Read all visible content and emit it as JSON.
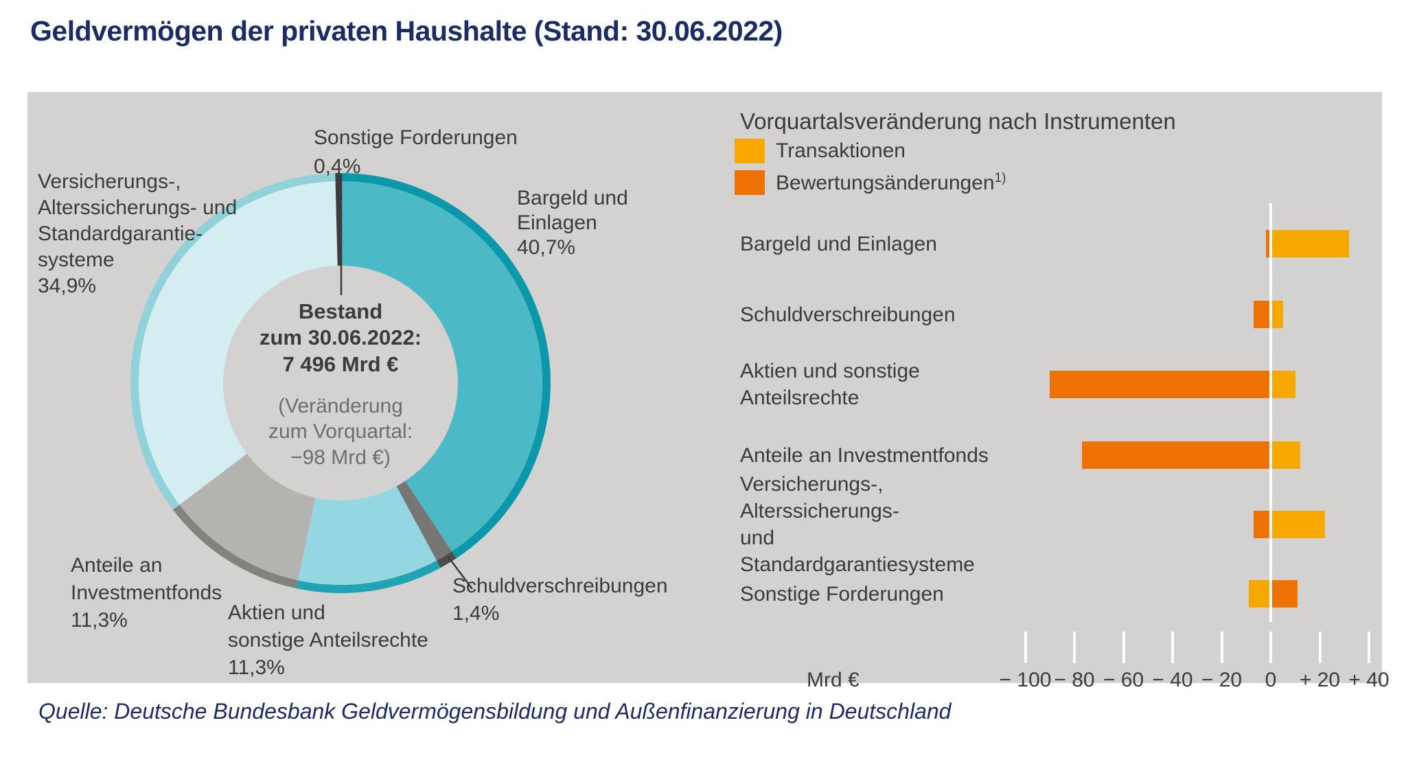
{
  "title": "Geldvermögen der privaten Haushalte (Stand: 30.06.2022)",
  "source": "Quelle: Deutsche Bundesbank Geldvermögensbildung und Außenfinanzierung in Deutschland",
  "colors": {
    "panel_background": "#d3d2d0",
    "title_navy": "#1b2b66",
    "label_dark": "#3b3b3a",
    "note_gray": "#6e6e6d",
    "transaktionen_yellow": "#f6a800",
    "bewertung_orange": "#ee7203",
    "zero_line_white": "#ffffff"
  },
  "chart_data": [
    {
      "type": "pie",
      "subtype": "donut",
      "center_text": [
        "Bestand",
        "zum 30.06.2022:",
        "7 496 Mrd €"
      ],
      "center_note": [
        "(Veränderung",
        "zum Vorquartal:",
        "−98 Mrd €)"
      ],
      "unit": "percent",
      "segments": [
        {
          "id": "bargeld",
          "label_lines": [
            "Bargeld und",
            "Einlagen"
          ],
          "pct_label": "40,7%",
          "value": 40.7,
          "fill": "#4cb9c6",
          "rim": "#0b98ab"
        },
        {
          "id": "schuldverschreibungen",
          "label_lines": [
            "Schuldverschreibungen"
          ],
          "pct_label": "1,4%",
          "value": 1.4,
          "fill": "#767675",
          "rim": "#4d4d4c"
        },
        {
          "id": "aktien",
          "label_lines": [
            "Aktien und",
            "sonstige Anteilsrechte"
          ],
          "pct_label": "11,3%",
          "value": 11.3,
          "fill": "#94d6e1",
          "rim": "#20a3b5"
        },
        {
          "id": "investmentfonds",
          "label_lines": [
            "Anteile an",
            "Investmentfonds"
          ],
          "pct_label": "11,3%",
          "value": 11.3,
          "fill": "#b4b3b0",
          "rim": "#82827f"
        },
        {
          "id": "versicherung",
          "label_lines": [
            "Versicherungs-,",
            "Alterssicherungs- und",
            "Standardgarantie-",
            "systeme"
          ],
          "pct_label": "34,9%",
          "value": 34.9,
          "fill": "#d3edf0",
          "rim": "#90d1da"
        },
        {
          "id": "sonstige",
          "label_lines": [
            "Sonstige Forderungen"
          ],
          "pct_label": "0,4%",
          "value": 0.4,
          "fill": "#3d3d3c",
          "rim": "#3d3d3c"
        }
      ]
    },
    {
      "type": "bar",
      "orientation": "horizontal",
      "title": "Vorquartalsveränderung nach Instrumenten",
      "unit_label": "Mrd €",
      "xlim": [
        -112,
        45
      ],
      "ticks": [
        -100,
        -80,
        -60,
        -40,
        -20,
        0,
        20,
        40
      ],
      "tick_labels": [
        "− 100",
        "− 80",
        "− 60",
        "− 40",
        "− 20",
        "0",
        "+ 20",
        "+ 40"
      ],
      "legend": [
        {
          "id": "transaktionen",
          "label": "Transaktionen",
          "superscript": "",
          "color": "#f6a800"
        },
        {
          "id": "bewertung",
          "label": "Bewertungsänderungen",
          "superscript": "1)",
          "color": "#ee7203"
        }
      ],
      "rows": [
        {
          "label_lines": [
            "Bargeld und Einlagen"
          ],
          "transaktionen": 32,
          "bewertung": -2
        },
        {
          "label_lines": [
            "Schuldverschreibungen"
          ],
          "transaktionen": 5,
          "bewertung": -7
        },
        {
          "label_lines": [
            "Aktien und sonstige Anteilsrechte"
          ],
          "transaktionen": 10,
          "bewertung": -90
        },
        {
          "label_lines": [
            "Anteile an Investmentfonds"
          ],
          "transaktionen": 12,
          "bewertung": -77
        },
        {
          "label_lines": [
            "Versicherungs-, Alterssicherungs-",
            "und Standardgarantiesysteme"
          ],
          "transaktionen": 22,
          "bewertung": -7
        },
        {
          "label_lines": [
            "Sonstige Forderungen"
          ],
          "transaktionen": -9,
          "bewertung": 11
        }
      ]
    }
  ]
}
